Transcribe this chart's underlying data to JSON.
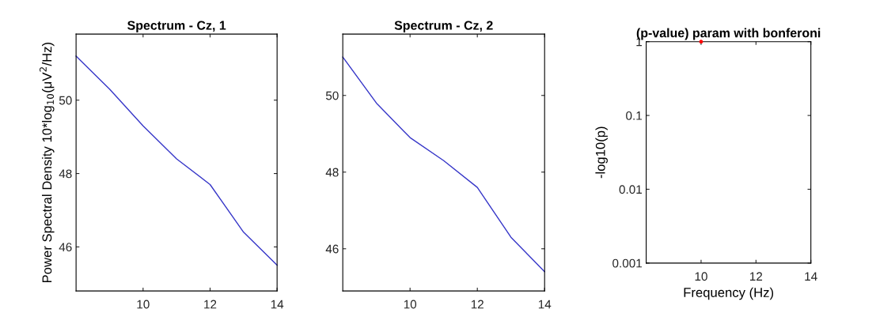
{
  "chart_data": [
    {
      "type": "line",
      "title": "Spectrum - Cz, 1",
      "ylabel": "Power Spectral Density 10*log$_{10}$(μV$^{2}$/Hz)",
      "x": [
        8,
        9,
        10,
        11,
        12,
        13,
        14
      ],
      "series": [
        {
          "color": "#3636c8",
          "values": [
            51.2,
            50.3,
            49.3,
            48.4,
            47.7,
            46.4,
            45.5
          ]
        }
      ],
      "xlim": [
        8,
        14
      ],
      "xticks": [
        10,
        12,
        14
      ],
      "ylim": [
        44.8,
        51.8
      ],
      "yticks": [
        46,
        48,
        50
      ],
      "grid": false,
      "marker": "none",
      "line_style": "solid"
    },
    {
      "type": "line",
      "title": "Spectrum - Cz, 2",
      "x": [
        8,
        9,
        10,
        11,
        12,
        13,
        14
      ],
      "series": [
        {
          "color": "#3636c8",
          "values": [
            51.0,
            49.8,
            48.9,
            48.3,
            47.6,
            46.3,
            45.4
          ]
        }
      ],
      "xlim": [
        8,
        14
      ],
      "xticks": [
        10,
        12,
        14
      ],
      "ylim": [
        44.9,
        51.6
      ],
      "yticks": [
        46,
        48,
        50
      ],
      "grid": false,
      "marker": "none",
      "line_style": "solid"
    },
    {
      "type": "scatter",
      "title": "(p-value) param with bonferoni",
      "xlabel": "Frequency (Hz)",
      "ylabel": "-log10(p)",
      "x": [
        10
      ],
      "series": [
        {
          "color": "#ff0000",
          "values": [
            1
          ]
        }
      ],
      "log": "y",
      "xlim": [
        8,
        14
      ],
      "xticks": [
        10,
        12,
        14
      ],
      "ylim": [
        0.001,
        1
      ],
      "yticks": [
        0.001,
        0.01,
        0.1,
        1
      ],
      "grid": false,
      "marker": "circle"
    }
  ]
}
